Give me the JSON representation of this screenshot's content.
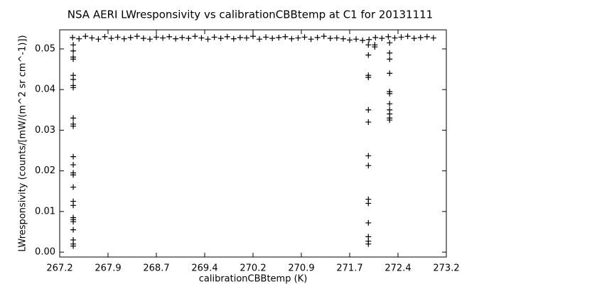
{
  "chart_data": {
    "type": "scatter",
    "title": "NSA AERI LWresponsivity vs calibrationCBBtemp at C1 for 20131111",
    "x_label": "calibrationCBBtemp (K)",
    "y_label": "LWresponsivity (counts/[mW/(m^2 sr cm^-1)])",
    "color": "#000000",
    "marker": "plus",
    "xlim": [
      267.2,
      273.2
    ],
    "ylim": [
      -0.0012,
      0.0547
    ],
    "xticks": [
      267.2,
      {
        "value": 267.95,
        "label": "267.9"
      },
      268.7,
      {
        "value": 269.45,
        "label": "269.4"
      },
      270.2,
      {
        "value": 270.95,
        "label": "270.9"
      },
      271.7,
      {
        "value": 272.45,
        "label": "272.4"
      },
      273.2
    ],
    "yticks": [
      {
        "value": 0,
        "label": "0.00"
      },
      0.01,
      0.02,
      0.03,
      0.04,
      0.05
    ],
    "x": [
      267.41,
      267.41,
      267.41,
      267.41,
      267.41,
      267.41,
      267.41,
      267.41,
      267.41,
      267.41,
      267.41,
      267.41,
      267.41,
      267.41,
      267.41,
      267.41,
      267.41,
      267.41,
      267.41,
      267.41,
      267.41,
      267.41,
      267.41,
      267.41,
      267.41,
      271.99,
      271.99,
      271.99,
      271.99,
      271.99,
      271.99,
      271.99,
      271.99,
      271.99,
      271.99,
      271.99,
      271.99,
      271.99,
      271.99,
      272.09,
      272.09,
      272.32,
      272.32,
      272.32,
      272.32,
      272.32,
      272.32,
      272.32,
      272.32,
      272.32,
      272.32,
      272.32,
      267.4,
      267.5,
      267.6,
      267.7,
      267.8,
      267.9,
      268.0,
      268.1,
      268.2,
      268.3,
      268.4,
      268.5,
      268.6,
      268.7,
      268.8,
      268.9,
      269.0,
      269.1,
      269.2,
      269.3,
      269.4,
      269.5,
      269.6,
      269.7,
      269.8,
      269.9,
      270.0,
      270.1,
      270.2,
      270.3,
      270.4,
      270.5,
      270.6,
      270.7,
      270.8,
      270.9,
      271.0,
      271.1,
      271.2,
      271.3,
      271.4,
      271.5,
      271.6,
      271.7,
      271.8,
      271.9,
      272.0,
      272.1,
      272.2,
      272.3,
      272.4,
      272.5,
      272.6,
      272.7,
      272.8,
      272.9,
      273.0
    ],
    "values": [
      0.051,
      0.0495,
      0.048,
      0.0475,
      0.0435,
      0.0425,
      0.041,
      0.0405,
      0.033,
      0.0315,
      0.031,
      0.0235,
      0.0215,
      0.0195,
      0.019,
      0.016,
      0.0125,
      0.0115,
      0.0085,
      0.008,
      0.0075,
      0.0055,
      0.003,
      0.002,
      0.0015,
      0.051,
      0.0485,
      0.0435,
      0.043,
      0.035,
      0.032,
      0.0237,
      0.0213,
      0.013,
      0.012,
      0.0072,
      0.0038,
      0.0027,
      0.002,
      0.0505,
      0.051,
      0.0515,
      0.049,
      0.0475,
      0.044,
      0.0395,
      0.039,
      0.0365,
      0.035,
      0.034,
      0.033,
      0.0325,
      0.0528,
      0.0525,
      0.0531,
      0.0527,
      0.0524,
      0.053,
      0.0526,
      0.0529,
      0.0525,
      0.0528,
      0.0531,
      0.0526,
      0.0524,
      0.0529,
      0.0527,
      0.053,
      0.0525,
      0.0528,
      0.0526,
      0.0531,
      0.0527,
      0.0524,
      0.0529,
      0.0526,
      0.053,
      0.0525,
      0.0528,
      0.0527,
      0.0531,
      0.0524,
      0.0529,
      0.0526,
      0.0528,
      0.053,
      0.0525,
      0.0527,
      0.0529,
      0.0524,
      0.0528,
      0.0531,
      0.0526,
      0.0527,
      0.0525,
      0.0522,
      0.0524,
      0.0521,
      0.0523,
      0.0528,
      0.0526,
      0.053,
      0.0527,
      0.0529,
      0.0531,
      0.0526,
      0.0528,
      0.053,
      0.0527
    ]
  }
}
